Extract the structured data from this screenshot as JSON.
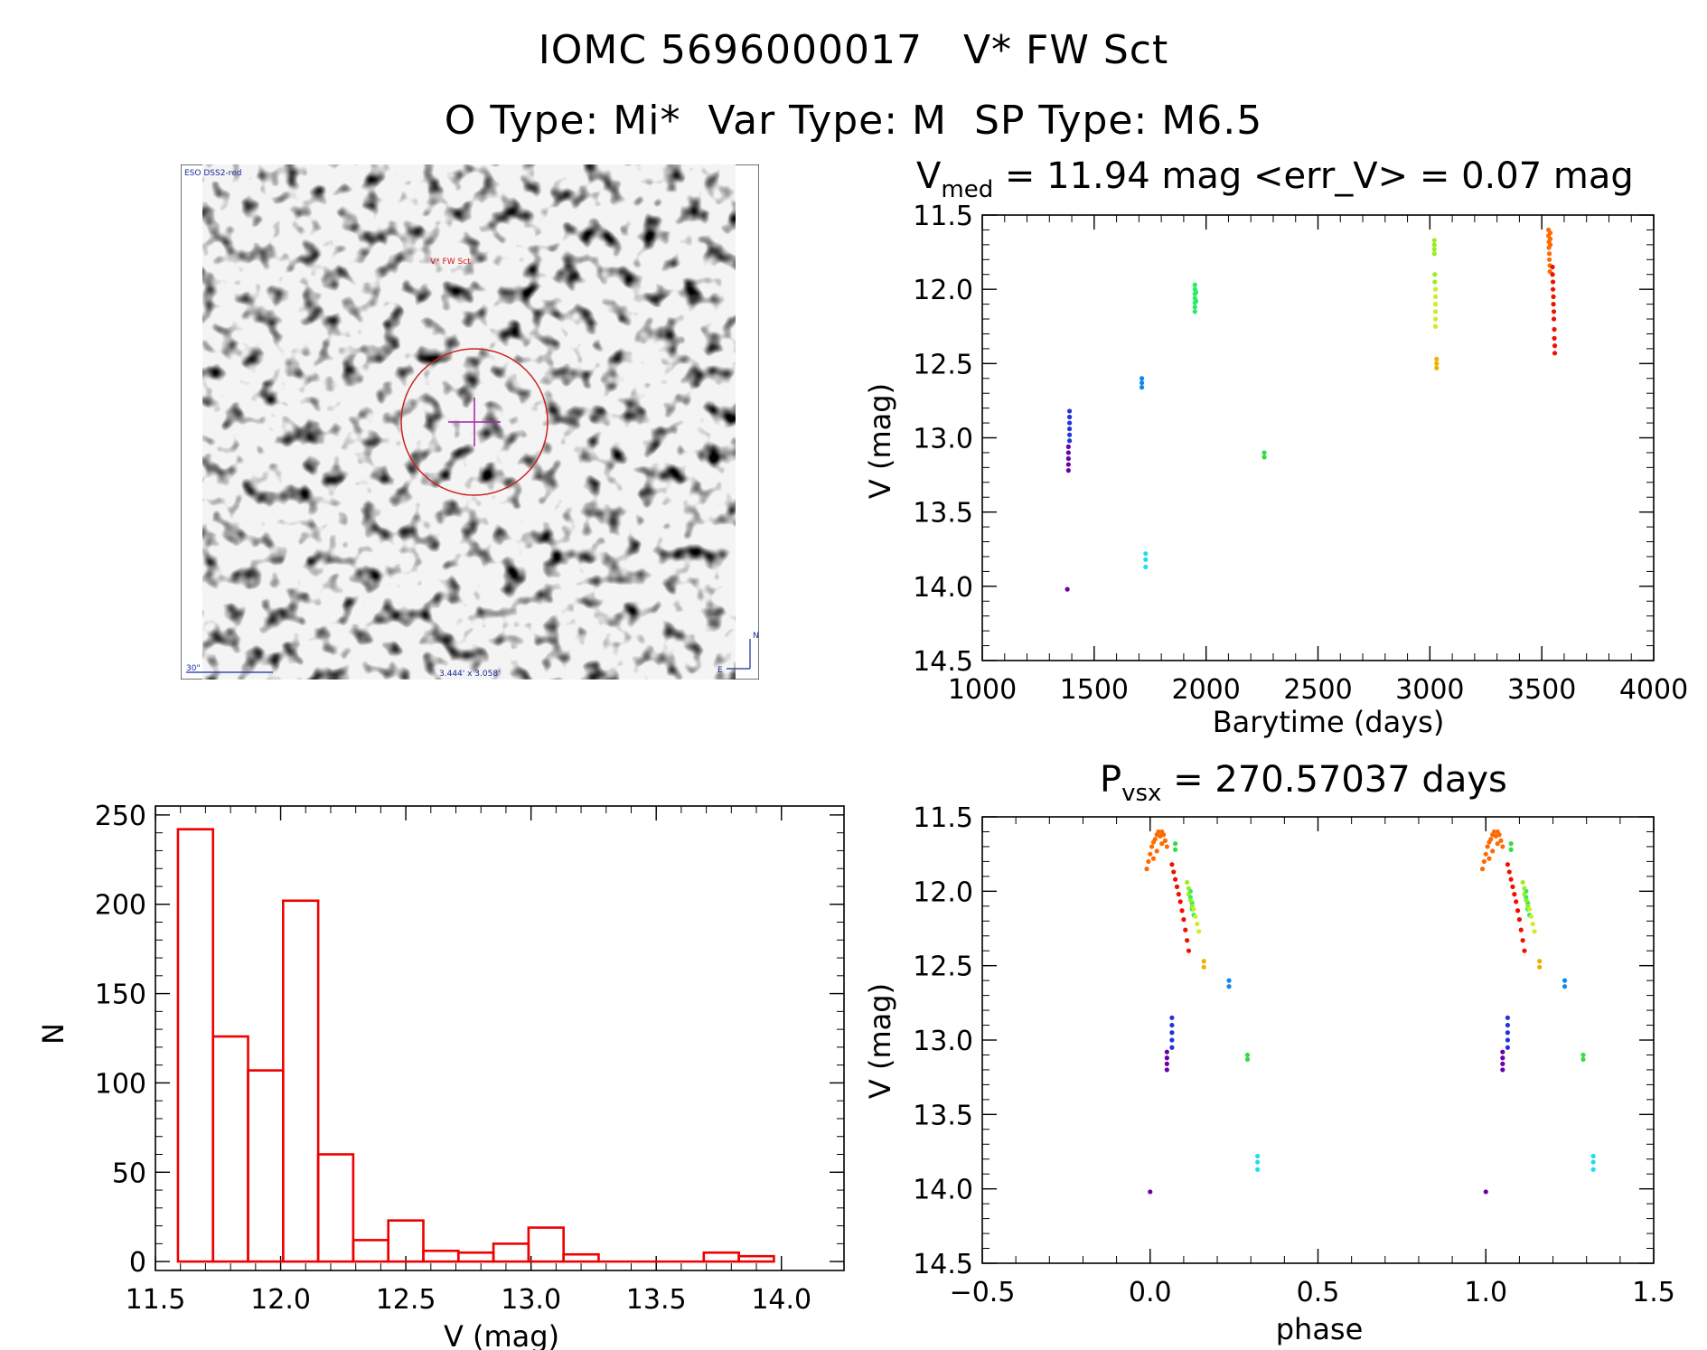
{
  "header": {
    "main_title": "IOMC 5696000017   V* FW Sct",
    "sub_title": "O Type: Mi*  Var Type: M  SP Type: M6.5"
  },
  "finder_image": {
    "survey_label": "ESO DSS2-red",
    "target_label": "V* FW Sct",
    "scale_label": "30\"",
    "fov_label": "3.444' x 3.058'",
    "compass_n": "N",
    "compass_e": "E"
  },
  "chart_data": [
    {
      "type": "scatter",
      "title_main": "V",
      "title_sub": "med",
      "title_rest": " = 11.94 mag <err_V> = 0.07 mag",
      "xlabel": "Barytime (days)",
      "ylabel": "V (mag)",
      "xlim": [
        1000,
        4000
      ],
      "ylim": [
        14.5,
        11.5
      ],
      "y_inverted": true,
      "xticks": [
        "1000",
        "1500",
        "2000",
        "2500",
        "3000",
        "3500",
        "4000"
      ],
      "yticks": [
        "11.5",
        "12.0",
        "12.5",
        "13.0",
        "13.5",
        "14.0",
        "14.5"
      ],
      "series": [
        {
          "color": "#6a00a8",
          "points": [
            [
              1380,
              14.02
            ],
            [
              1385,
              13.22
            ],
            [
              1385,
              13.18
            ],
            [
              1385,
              13.14
            ],
            [
              1385,
              13.1
            ],
            [
              1385,
              13.06
            ]
          ]
        },
        {
          "color": "#2233dd",
          "points": [
            [
              1390,
              13.02
            ],
            [
              1390,
              12.98
            ],
            [
              1390,
              12.94
            ],
            [
              1390,
              12.9
            ],
            [
              1390,
              12.86
            ],
            [
              1390,
              12.82
            ]
          ]
        },
        {
          "color": "#1188ee",
          "points": [
            [
              1713,
              12.6
            ],
            [
              1713,
              12.63
            ],
            [
              1713,
              12.66
            ]
          ]
        },
        {
          "color": "#22ddee",
          "points": [
            [
              1730,
              13.78
            ],
            [
              1730,
              13.82
            ],
            [
              1730,
              13.87
            ]
          ]
        },
        {
          "color": "#22ee66",
          "points": [
            [
              1950,
              11.97
            ],
            [
              1950,
              12.0
            ],
            [
              1950,
              12.03
            ],
            [
              1950,
              12.06
            ],
            [
              1950,
              12.09
            ],
            [
              1950,
              12.12
            ],
            [
              1950,
              12.15
            ],
            [
              1955,
              12.02
            ],
            [
              1955,
              12.08
            ]
          ]
        },
        {
          "color": "#33dd44",
          "points": [
            [
              2260,
              13.1
            ],
            [
              2260,
              13.13
            ]
          ]
        },
        {
          "color": "#99ee22",
          "points": [
            [
              3020,
              11.67
            ],
            [
              3020,
              11.7
            ],
            [
              3020,
              11.73
            ],
            [
              3020,
              11.76
            ],
            [
              3022,
              11.9
            ],
            [
              3022,
              11.95
            ]
          ]
        },
        {
          "color": "#ccee22",
          "points": [
            [
              3025,
              12.0
            ],
            [
              3025,
              12.05
            ],
            [
              3025,
              12.1
            ],
            [
              3025,
              12.15
            ],
            [
              3025,
              12.2
            ],
            [
              3025,
              12.25
            ]
          ]
        },
        {
          "color": "#f0b000",
          "points": [
            [
              3030,
              12.47
            ],
            [
              3030,
              12.5
            ],
            [
              3030,
              12.53
            ]
          ]
        },
        {
          "color": "#ff6a00",
          "points": [
            [
              3530,
              11.6
            ],
            [
              3530,
              11.64
            ],
            [
              3532,
              11.68
            ],
            [
              3532,
              11.72
            ],
            [
              3534,
              11.76
            ],
            [
              3534,
              11.8
            ],
            [
              3536,
              11.84
            ],
            [
              3536,
              11.88
            ],
            [
              3538,
              11.62
            ],
            [
              3538,
              11.66
            ],
            [
              3538,
              11.7
            ]
          ]
        },
        {
          "color": "#ee1100",
          "points": [
            [
              3548,
              11.85
            ],
            [
              3548,
              11.9
            ],
            [
              3550,
              11.95
            ],
            [
              3550,
              12.0
            ],
            [
              3552,
              12.05
            ],
            [
              3552,
              12.1
            ],
            [
              3554,
              12.15
            ],
            [
              3554,
              12.2
            ],
            [
              3556,
              12.27
            ],
            [
              3556,
              12.33
            ],
            [
              3558,
              12.38
            ],
            [
              3558,
              12.43
            ]
          ]
        }
      ]
    },
    {
      "type": "bar",
      "xlabel": "V (mag)",
      "ylabel": "N",
      "xlim": [
        11.5,
        14.25
      ],
      "ylim": [
        -5,
        255
      ],
      "xticks": [
        "11.5",
        "12.0",
        "12.5",
        "13.0",
        "13.5",
        "14.0"
      ],
      "yticks": [
        "0",
        "50",
        "100",
        "150",
        "200",
        "250"
      ],
      "bin_edges": [
        11.59,
        11.73,
        11.87,
        12.01,
        12.15,
        12.29,
        12.43,
        12.57,
        12.71,
        12.85,
        12.99,
        13.13,
        13.27,
        13.41,
        13.55,
        13.69,
        13.83,
        13.97
      ],
      "values": [
        242,
        126,
        107,
        202,
        60,
        12,
        23,
        6,
        5,
        10,
        19,
        4,
        0,
        0,
        0,
        5,
        3
      ]
    },
    {
      "type": "scatter",
      "title_main": "P",
      "title_sub": "vsx",
      "title_rest": " = 270.57037 days",
      "xlabel": "phase",
      "ylabel": "V (mag)",
      "xlim": [
        -0.5,
        1.5
      ],
      "ylim": [
        14.5,
        11.5
      ],
      "y_inverted": true,
      "xticks": [
        "−0.5",
        "0.0",
        "0.5",
        "1.0",
        "1.5"
      ],
      "yticks": [
        "11.5",
        "12.0",
        "12.5",
        "13.0",
        "13.5",
        "14.0",
        "14.5"
      ],
      "series": [
        {
          "color": "#6a00a8",
          "points": [
            [
              0.0,
              14.02
            ],
            [
              0.05,
              13.2
            ],
            [
              0.05,
              13.16
            ],
            [
              0.05,
              13.12
            ],
            [
              0.05,
              13.08
            ],
            [
              1.0,
              14.02
            ],
            [
              1.05,
              13.2
            ],
            [
              1.05,
              13.16
            ],
            [
              1.05,
              13.12
            ],
            [
              1.05,
              13.08
            ]
          ]
        },
        {
          "color": "#2233dd",
          "points": [
            [
              0.065,
              13.05
            ],
            [
              0.065,
              13.0
            ],
            [
              0.065,
              12.95
            ],
            [
              0.065,
              12.9
            ],
            [
              0.065,
              12.85
            ],
            [
              1.065,
              13.05
            ],
            [
              1.065,
              13.0
            ],
            [
              1.065,
              12.95
            ],
            [
              1.065,
              12.9
            ],
            [
              1.065,
              12.85
            ]
          ]
        },
        {
          "color": "#1188ee",
          "points": [
            [
              0.235,
              12.6
            ],
            [
              0.235,
              12.64
            ],
            [
              1.235,
              12.6
            ],
            [
              1.235,
              12.64
            ]
          ]
        },
        {
          "color": "#22ddee",
          "points": [
            [
              0.32,
              13.78
            ],
            [
              0.32,
              13.82
            ],
            [
              0.32,
              13.87
            ],
            [
              1.32,
              13.78
            ],
            [
              1.32,
              13.82
            ],
            [
              1.32,
              13.87
            ]
          ]
        },
        {
          "color": "#22ee66",
          "points": [
            [
              0.12,
              12.0
            ],
            [
              0.12,
              12.04
            ],
            [
              0.125,
              12.08
            ],
            [
              0.125,
              12.12
            ],
            [
              0.13,
              12.16
            ],
            [
              1.12,
              12.0
            ],
            [
              1.12,
              12.04
            ],
            [
              1.125,
              12.08
            ],
            [
              1.125,
              12.12
            ],
            [
              1.13,
              12.16
            ]
          ]
        },
        {
          "color": "#33dd44",
          "points": [
            [
              0.29,
              13.1
            ],
            [
              0.29,
              13.13
            ],
            [
              0.075,
              11.68
            ],
            [
              0.075,
              11.72
            ],
            [
              1.29,
              13.1
            ],
            [
              1.29,
              13.13
            ],
            [
              1.075,
              11.68
            ],
            [
              1.075,
              11.72
            ]
          ]
        },
        {
          "color": "#99ee22",
          "points": [
            [
              0.11,
              11.94
            ],
            [
              0.115,
              11.98
            ],
            [
              0.115,
              12.02
            ],
            [
              0.12,
              12.06
            ],
            [
              0.125,
              12.1
            ],
            [
              1.11,
              11.94
            ],
            [
              1.115,
              11.98
            ],
            [
              1.115,
              12.02
            ],
            [
              1.12,
              12.06
            ],
            [
              1.125,
              12.1
            ]
          ]
        },
        {
          "color": "#ccee22",
          "points": [
            [
              0.13,
              12.12
            ],
            [
              0.135,
              12.17
            ],
            [
              0.14,
              12.22
            ],
            [
              0.145,
              12.27
            ],
            [
              1.13,
              12.12
            ],
            [
              1.135,
              12.17
            ],
            [
              1.14,
              12.22
            ],
            [
              1.145,
              12.27
            ]
          ]
        },
        {
          "color": "#f0b000",
          "points": [
            [
              0.16,
              12.47
            ],
            [
              0.16,
              12.51
            ],
            [
              1.16,
              12.47
            ],
            [
              1.16,
              12.51
            ]
          ]
        },
        {
          "color": "#ff6a00",
          "points": [
            [
              -0.01,
              11.85
            ],
            [
              -0.005,
              11.8
            ],
            [
              0.0,
              11.75
            ],
            [
              0.005,
              11.7
            ],
            [
              0.01,
              11.67
            ],
            [
              0.015,
              11.65
            ],
            [
              0.02,
              11.62
            ],
            [
              0.025,
              11.6
            ],
            [
              0.03,
              11.63
            ],
            [
              0.035,
              11.6
            ],
            [
              0.04,
              11.62
            ],
            [
              0.045,
              11.66
            ],
            [
              0.05,
              11.7
            ],
            [
              0.035,
              11.68
            ],
            [
              0.02,
              11.73
            ],
            [
              0.01,
              11.78
            ],
            [
              0.99,
              11.85
            ],
            [
              0.995,
              11.8
            ],
            [
              1.0,
              11.75
            ],
            [
              1.005,
              11.7
            ],
            [
              1.01,
              11.67
            ],
            [
              1.015,
              11.65
            ],
            [
              1.02,
              11.62
            ],
            [
              1.025,
              11.6
            ],
            [
              1.03,
              11.63
            ],
            [
              1.035,
              11.6
            ],
            [
              1.04,
              11.62
            ],
            [
              1.045,
              11.66
            ],
            [
              1.05,
              11.7
            ],
            [
              1.035,
              11.68
            ],
            [
              1.02,
              11.73
            ],
            [
              1.01,
              11.78
            ]
          ]
        },
        {
          "color": "#ee1100",
          "points": [
            [
              0.065,
              11.82
            ],
            [
              0.07,
              11.87
            ],
            [
              0.075,
              11.92
            ],
            [
              0.08,
              11.97
            ],
            [
              0.085,
              12.02
            ],
            [
              0.09,
              12.07
            ],
            [
              0.095,
              12.13
            ],
            [
              0.1,
              12.19
            ],
            [
              0.105,
              12.26
            ],
            [
              0.11,
              12.33
            ],
            [
              0.115,
              12.4
            ],
            [
              1.065,
              11.82
            ],
            [
              1.07,
              11.87
            ],
            [
              1.075,
              11.92
            ],
            [
              1.08,
              11.97
            ],
            [
              1.085,
              12.02
            ],
            [
              1.09,
              12.07
            ],
            [
              1.095,
              12.13
            ],
            [
              1.1,
              12.19
            ],
            [
              1.105,
              12.26
            ],
            [
              1.11,
              12.33
            ],
            [
              1.115,
              12.4
            ]
          ]
        }
      ]
    }
  ]
}
